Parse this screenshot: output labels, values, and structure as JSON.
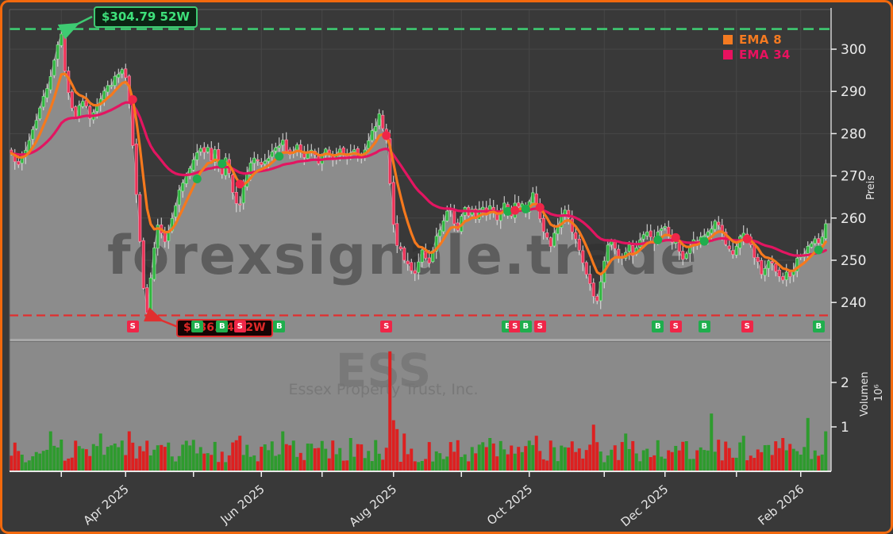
{
  "meta": {
    "watermark": "forexsignale.trade",
    "symbol": "ESS",
    "company": "Essex Property Trust, Inc."
  },
  "legend": [
    {
      "label": "EMA 8",
      "color": "#f47a21"
    },
    {
      "label": "EMA 34",
      "color": "#e8125f"
    }
  ],
  "axes": {
    "price": {
      "label": "Preis",
      "ticks": [
        300,
        290,
        280,
        270,
        260,
        250,
        240
      ]
    },
    "volume": {
      "label": "Volumen",
      "exp_label": "10⁶",
      "ticks": [
        2,
        1
      ]
    },
    "time": {
      "month_tick_days": [
        14,
        32,
        51,
        70,
        87,
        107,
        126,
        145,
        166,
        183,
        203,
        221
      ],
      "labels": [
        {
          "day": 32,
          "text": "Apr 2025"
        },
        {
          "day": 70,
          "text": "Jun 2025"
        },
        {
          "day": 107,
          "text": "Aug 2025"
        },
        {
          "day": 145,
          "text": "Oct 2025"
        },
        {
          "day": 183,
          "text": "Dec 2025"
        },
        {
          "day": 221,
          "text": "Feb 2026"
        }
      ]
    }
  },
  "annotations": {
    "high": {
      "label": "$304.79 52W",
      "price": 304.79
    },
    "low": {
      "label": "$236.94 52W",
      "price": 236.94
    }
  },
  "colors": {
    "up": "#2fb33e",
    "up_edge": "#8fe79a",
    "down": "#ee3156",
    "down_edge": "#f78ba6",
    "wick": "#e2e2e2",
    "ema8": "#f5791d",
    "ema34": "#e31561",
    "high_line": "#3ecb72",
    "low_line": "#e12f2f",
    "buy": "#1fae4d",
    "sell": "#ef2648",
    "area": "#8c8c8c",
    "vol_bg": "#8a8a8a",
    "separator": "#bcbcbc",
    "grid": "#474747",
    "frame": "#f2690d",
    "axis_text": "#ececec",
    "vol_up": "#2e9b2e",
    "vol_down": "#dd2020"
  },
  "chart_data": {
    "type": "candlestick",
    "num_candles": 229,
    "price_range_ticks": [
      240,
      300
    ],
    "high_52w": {
      "day": 14,
      "price": 304.79
    },
    "low_52w": {
      "day": 38,
      "price": 236.94
    },
    "price_waypoints": [
      [
        0,
        276
      ],
      [
        2,
        272
      ],
      [
        4,
        276
      ],
      [
        6,
        281
      ],
      [
        8,
        286
      ],
      [
        10,
        291
      ],
      [
        12,
        297
      ],
      [
        13,
        301
      ],
      [
        14,
        304
      ],
      [
        15,
        295
      ],
      [
        16,
        290
      ],
      [
        17,
        286
      ],
      [
        18,
        284
      ],
      [
        20,
        288
      ],
      [
        22,
        284
      ],
      [
        24,
        287
      ],
      [
        26,
        290
      ],
      [
        28,
        292
      ],
      [
        30,
        294
      ],
      [
        31,
        295
      ],
      [
        32,
        293
      ],
      [
        33,
        287
      ],
      [
        34,
        277
      ],
      [
        35,
        265
      ],
      [
        36,
        254
      ],
      [
        37,
        244
      ],
      [
        38,
        238
      ],
      [
        39,
        246
      ],
      [
        40,
        253
      ],
      [
        41,
        259
      ],
      [
        42,
        257
      ],
      [
        43,
        254
      ],
      [
        44,
        257
      ],
      [
        45,
        260
      ],
      [
        46,
        263
      ],
      [
        47,
        266
      ],
      [
        48,
        268
      ],
      [
        50,
        272
      ],
      [
        52,
        276
      ],
      [
        53,
        277
      ],
      [
        54,
        275
      ],
      [
        55,
        277
      ],
      [
        56,
        274
      ],
      [
        57,
        276
      ],
      [
        58,
        273
      ],
      [
        59,
        271
      ],
      [
        60,
        274
      ],
      [
        61,
        270
      ],
      [
        62,
        266
      ],
      [
        63,
        263
      ],
      [
        64,
        263
      ],
      [
        65,
        267
      ],
      [
        66,
        271
      ],
      [
        67,
        273
      ],
      [
        68,
        274
      ],
      [
        70,
        272
      ],
      [
        72,
        274
      ],
      [
        74,
        276
      ],
      [
        76,
        278
      ],
      [
        78,
        275
      ],
      [
        80,
        277
      ],
      [
        82,
        274
      ],
      [
        84,
        276
      ],
      [
        86,
        273
      ],
      [
        88,
        276
      ],
      [
        90,
        274
      ],
      [
        92,
        277
      ],
      [
        94,
        274
      ],
      [
        96,
        276
      ],
      [
        98,
        274
      ],
      [
        100,
        278
      ],
      [
        101,
        280
      ],
      [
        102,
        282
      ],
      [
        103,
        284
      ],
      [
        104,
        281
      ],
      [
        105,
        278
      ],
      [
        106,
        268
      ],
      [
        107,
        258
      ],
      [
        108,
        254
      ],
      [
        109,
        252
      ],
      [
        110,
        250
      ],
      [
        111,
        249
      ],
      [
        112,
        248
      ],
      [
        113,
        247
      ],
      [
        114,
        250
      ],
      [
        115,
        252
      ],
      [
        116,
        250
      ],
      [
        117,
        249
      ],
      [
        118,
        252
      ],
      [
        119,
        255
      ],
      [
        120,
        257
      ],
      [
        121,
        259
      ],
      [
        122,
        261
      ],
      [
        123,
        262
      ],
      [
        124,
        259
      ],
      [
        125,
        257
      ],
      [
        126,
        260
      ],
      [
        127,
        262
      ],
      [
        128,
        261
      ],
      [
        129,
        262
      ],
      [
        130,
        260
      ],
      [
        131,
        262
      ],
      [
        132,
        263
      ],
      [
        133,
        261
      ],
      [
        134,
        263
      ],
      [
        135,
        262
      ],
      [
        136,
        260
      ],
      [
        137,
        262
      ],
      [
        138,
        264
      ],
      [
        139,
        262
      ],
      [
        140,
        261
      ],
      [
        141,
        263
      ],
      [
        142,
        262
      ],
      [
        143,
        264
      ],
      [
        144,
        262
      ],
      [
        145,
        264
      ],
      [
        146,
        266
      ],
      [
        147,
        263
      ],
      [
        148,
        260
      ],
      [
        149,
        257
      ],
      [
        150,
        255
      ],
      [
        151,
        253
      ],
      [
        152,
        256
      ],
      [
        153,
        258
      ],
      [
        154,
        260
      ],
      [
        155,
        262
      ],
      [
        156,
        260
      ],
      [
        157,
        257
      ],
      [
        158,
        255
      ],
      [
        159,
        252
      ],
      [
        160,
        250
      ],
      [
        161,
        247
      ],
      [
        162,
        244
      ],
      [
        163,
        241
      ],
      [
        164,
        240
      ],
      [
        165,
        245
      ],
      [
        166,
        250
      ],
      [
        167,
        253
      ],
      [
        168,
        255
      ],
      [
        169,
        253
      ],
      [
        170,
        251
      ],
      [
        171,
        250
      ],
      [
        172,
        252
      ],
      [
        173,
        253
      ],
      [
        174,
        251
      ],
      [
        175,
        253
      ],
      [
        176,
        255
      ],
      [
        177,
        256
      ],
      [
        178,
        257
      ],
      [
        179,
        255
      ],
      [
        180,
        254
      ],
      [
        181,
        256
      ],
      [
        182,
        257
      ],
      [
        183,
        258
      ],
      [
        184,
        256
      ],
      [
        185,
        254
      ],
      [
        186,
        254
      ],
      [
        187,
        252
      ],
      [
        188,
        250
      ],
      [
        189,
        252
      ],
      [
        190,
        253
      ],
      [
        191,
        255
      ],
      [
        192,
        254
      ],
      [
        193,
        255
      ],
      [
        194,
        256
      ],
      [
        195,
        257
      ],
      [
        196,
        258
      ],
      [
        197,
        259
      ],
      [
        198,
        258
      ],
      [
        199,
        256
      ],
      [
        200,
        254
      ],
      [
        201,
        253
      ],
      [
        202,
        252
      ],
      [
        203,
        253
      ],
      [
        204,
        255
      ],
      [
        205,
        256
      ],
      [
        206,
        255
      ],
      [
        207,
        253
      ],
      [
        208,
        251
      ],
      [
        209,
        249
      ],
      [
        210,
        247
      ],
      [
        211,
        248
      ],
      [
        212,
        250
      ],
      [
        213,
        249
      ],
      [
        214,
        247
      ],
      [
        215,
        246
      ],
      [
        216,
        245
      ],
      [
        217,
        247
      ],
      [
        218,
        246
      ],
      [
        219,
        248
      ],
      [
        220,
        250
      ],
      [
        221,
        251
      ],
      [
        222,
        252
      ],
      [
        223,
        253
      ],
      [
        224,
        254
      ],
      [
        225,
        255
      ],
      [
        226,
        254
      ],
      [
        227,
        255
      ],
      [
        228,
        258
      ]
    ],
    "ema_periods": [
      8,
      34
    ],
    "signals": [
      {
        "day": 34,
        "type": "S"
      },
      {
        "day": 52,
        "type": "B"
      },
      {
        "day": 59,
        "type": "B"
      },
      {
        "day": 64,
        "type": "S"
      },
      {
        "day": 75,
        "type": "B"
      },
      {
        "day": 105,
        "type": "S"
      },
      {
        "day": 139,
        "type": "B"
      },
      {
        "day": 141,
        "type": "S"
      },
      {
        "day": 144,
        "type": "B"
      },
      {
        "day": 148,
        "type": "S"
      },
      {
        "day": 181,
        "type": "B"
      },
      {
        "day": 186,
        "type": "S"
      },
      {
        "day": 194,
        "type": "B"
      },
      {
        "day": 206,
        "type": "S"
      },
      {
        "day": 226,
        "type": "B"
      }
    ],
    "volume_unit": "10⁶",
    "volume_base": 0.45,
    "volume_spikes": {
      "11": 0.9,
      "25": 0.85,
      "33": 0.9,
      "48": 0.6,
      "64": 0.8,
      "76": 0.9,
      "95": 0.75,
      "106": 2.7,
      "107": 1.15,
      "108": 0.95,
      "110": 0.85,
      "125": 0.7,
      "134": 0.75,
      "147": 0.8,
      "163": 1.05,
      "172": 0.85,
      "181": 0.7,
      "196": 1.3,
      "205": 0.8,
      "216": 0.75,
      "223": 1.2,
      "228": 0.9
    }
  }
}
